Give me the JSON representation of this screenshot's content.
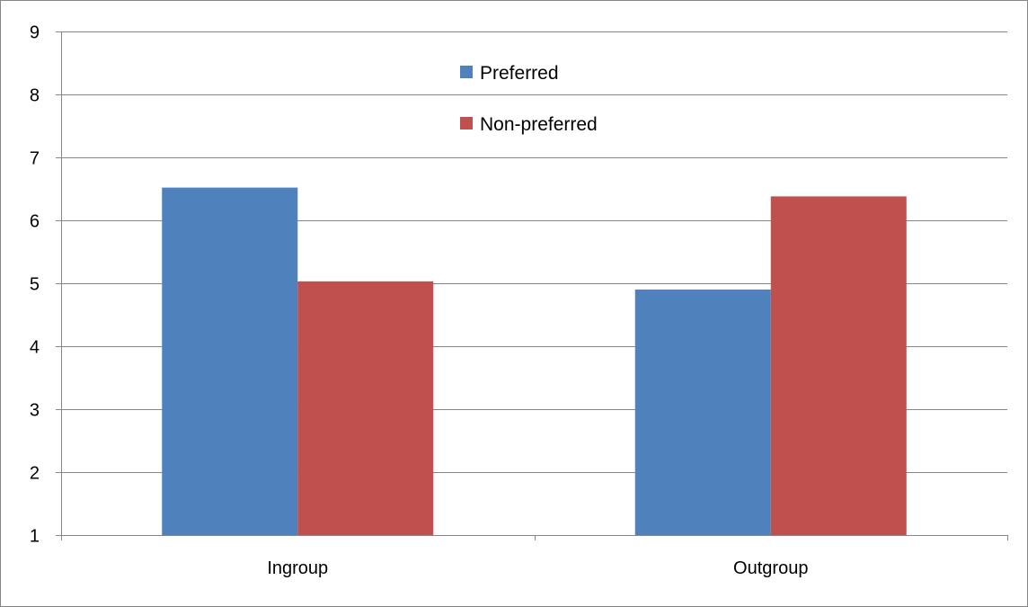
{
  "chart_data": {
    "type": "bar",
    "title": "",
    "xlabel": "",
    "ylabel": "",
    "categories": [
      "Ingroup",
      "Outgroup"
    ],
    "series": [
      {
        "name": "Preferred",
        "values": [
          6.52,
          4.9
        ],
        "color": "#4F81BD"
      },
      {
        "name": "Non-preferred",
        "values": [
          5.03,
          6.38
        ],
        "color": "#C0504D"
      }
    ],
    "ylim": [
      1,
      9
    ],
    "yticks": [
      "1",
      "2",
      "3",
      "4",
      "5",
      "6",
      "7",
      "8",
      "9"
    ],
    "grid": true,
    "legend_position": "top-center"
  },
  "colors": {
    "gridline": "#868686",
    "axis": "#868686",
    "border": "#868686"
  }
}
